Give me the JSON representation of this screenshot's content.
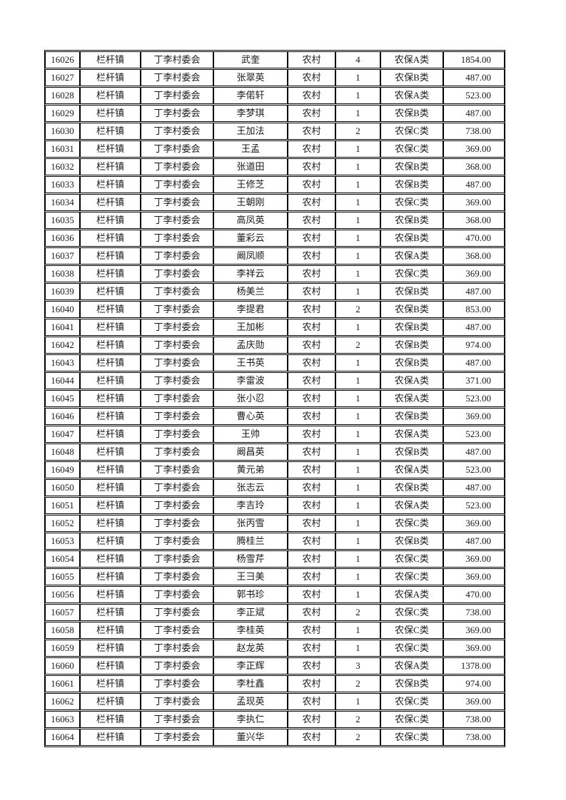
{
  "table": {
    "column_keys": [
      "serial",
      "town",
      "village",
      "name",
      "residence",
      "count",
      "category",
      "amount"
    ],
    "rows": [
      [
        "16026",
        "栏杆镇",
        "丁李村委会",
        "武奎",
        "农村",
        "4",
        "农保A类",
        "1854.00"
      ],
      [
        "16027",
        "栏杆镇",
        "丁李村委会",
        "张翠英",
        "农村",
        "1",
        "农保B类",
        "487.00"
      ],
      [
        "16028",
        "栏杆镇",
        "丁李村委会",
        "李偌轩",
        "农村",
        "1",
        "农保A类",
        "523.00"
      ],
      [
        "16029",
        "栏杆镇",
        "丁李村委会",
        "李梦琪",
        "农村",
        "1",
        "农保B类",
        "487.00"
      ],
      [
        "16030",
        "栏杆镇",
        "丁李村委会",
        "王加法",
        "农村",
        "2",
        "农保C类",
        "738.00"
      ],
      [
        "16031",
        "栏杆镇",
        "丁李村委会",
        "王孟",
        "农村",
        "1",
        "农保C类",
        "369.00"
      ],
      [
        "16032",
        "栏杆镇",
        "丁李村委会",
        "张道田",
        "农村",
        "1",
        "农保B类",
        "368.00"
      ],
      [
        "16033",
        "栏杆镇",
        "丁李村委会",
        "王修芝",
        "农村",
        "1",
        "农保B类",
        "487.00"
      ],
      [
        "16034",
        "栏杆镇",
        "丁李村委会",
        "王朝刚",
        "农村",
        "1",
        "农保C类",
        "369.00"
      ],
      [
        "16035",
        "栏杆镇",
        "丁李村委会",
        "高凤英",
        "农村",
        "1",
        "农保B类",
        "368.00"
      ],
      [
        "16036",
        "栏杆镇",
        "丁李村委会",
        "董彩云",
        "农村",
        "1",
        "农保B类",
        "470.00"
      ],
      [
        "16037",
        "栏杆镇",
        "丁李村委会",
        "阚凤顺",
        "农村",
        "1",
        "农保A类",
        "368.00"
      ],
      [
        "16038",
        "栏杆镇",
        "丁李村委会",
        "李祥云",
        "农村",
        "1",
        "农保C类",
        "369.00"
      ],
      [
        "16039",
        "栏杆镇",
        "丁李村委会",
        "杨美兰",
        "农村",
        "1",
        "农保B类",
        "487.00"
      ],
      [
        "16040",
        "栏杆镇",
        "丁李村委会",
        "李提君",
        "农村",
        "2",
        "农保B类",
        "853.00"
      ],
      [
        "16041",
        "栏杆镇",
        "丁李村委会",
        "王加彬",
        "农村",
        "1",
        "农保B类",
        "487.00"
      ],
      [
        "16042",
        "栏杆镇",
        "丁李村委会",
        "孟庆勋",
        "农村",
        "2",
        "农保B类",
        "974.00"
      ],
      [
        "16043",
        "栏杆镇",
        "丁李村委会",
        "王书英",
        "农村",
        "1",
        "农保B类",
        "487.00"
      ],
      [
        "16044",
        "栏杆镇",
        "丁李村委会",
        "李雷波",
        "农村",
        "1",
        "农保A类",
        "371.00"
      ],
      [
        "16045",
        "栏杆镇",
        "丁李村委会",
        "张小忍",
        "农村",
        "1",
        "农保A类",
        "523.00"
      ],
      [
        "16046",
        "栏杆镇",
        "丁李村委会",
        "曹心英",
        "农村",
        "1",
        "农保B类",
        "369.00"
      ],
      [
        "16047",
        "栏杆镇",
        "丁李村委会",
        "王帅",
        "农村",
        "1",
        "农保A类",
        "523.00"
      ],
      [
        "16048",
        "栏杆镇",
        "丁李村委会",
        "阚昌英",
        "农村",
        "1",
        "农保B类",
        "487.00"
      ],
      [
        "16049",
        "栏杆镇",
        "丁李村委会",
        "黄元弟",
        "农村",
        "1",
        "农保A类",
        "523.00"
      ],
      [
        "16050",
        "栏杆镇",
        "丁李村委会",
        "张志云",
        "农村",
        "1",
        "农保B类",
        "487.00"
      ],
      [
        "16051",
        "栏杆镇",
        "丁李村委会",
        "李吉玲",
        "农村",
        "1",
        "农保A类",
        "523.00"
      ],
      [
        "16052",
        "栏杆镇",
        "丁李村委会",
        "张丙雪",
        "农村",
        "1",
        "农保C类",
        "369.00"
      ],
      [
        "16053",
        "栏杆镇",
        "丁李村委会",
        "腾桂兰",
        "农村",
        "1",
        "农保B类",
        "487.00"
      ],
      [
        "16054",
        "栏杆镇",
        "丁李村委会",
        "杨雪芹",
        "农村",
        "1",
        "农保C类",
        "369.00"
      ],
      [
        "16055",
        "栏杆镇",
        "丁李村委会",
        "王彐美",
        "农村",
        "1",
        "农保C类",
        "369.00"
      ],
      [
        "16056",
        "栏杆镇",
        "丁李村委会",
        "郭书珍",
        "农村",
        "1",
        "农保A类",
        "470.00"
      ],
      [
        "16057",
        "栏杆镇",
        "丁李村委会",
        "李正斌",
        "农村",
        "2",
        "农保C类",
        "738.00"
      ],
      [
        "16058",
        "栏杆镇",
        "丁李村委会",
        "李桂英",
        "农村",
        "1",
        "农保C类",
        "369.00"
      ],
      [
        "16059",
        "栏杆镇",
        "丁李村委会",
        "赵龙英",
        "农村",
        "1",
        "农保C类",
        "369.00"
      ],
      [
        "16060",
        "栏杆镇",
        "丁李村委会",
        "李正辉",
        "农村",
        "3",
        "农保A类",
        "1378.00"
      ],
      [
        "16061",
        "栏杆镇",
        "丁李村委会",
        "李杜鑫",
        "农村",
        "2",
        "农保B类",
        "974.00"
      ],
      [
        "16062",
        "栏杆镇",
        "丁李村委会",
        "孟现英",
        "农村",
        "1",
        "农保C类",
        "369.00"
      ],
      [
        "16063",
        "栏杆镇",
        "丁李村委会",
        "李执仁",
        "农村",
        "2",
        "农保C类",
        "738.00"
      ],
      [
        "16064",
        "栏杆镇",
        "丁李村委会",
        "董兴华",
        "农村",
        "2",
        "农保C类",
        "738.00"
      ]
    ]
  },
  "colors": {
    "page_background": "#ffffff",
    "grid_line": "#000000",
    "text": "#1a1a1a"
  }
}
